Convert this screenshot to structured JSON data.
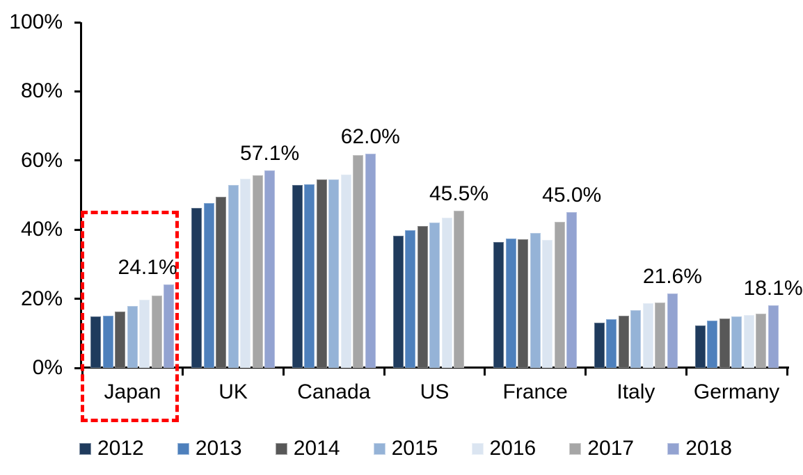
{
  "chart_data": {
    "type": "bar",
    "title": "",
    "categories": [
      "Japan",
      "UK",
      "Canada",
      "US",
      "France",
      "Italy",
      "Germany"
    ],
    "series": [
      {
        "name": "2012",
        "color": "#1F3B5D",
        "values": [
          14.8,
          46.3,
          52.9,
          38.2,
          36.4,
          13.1,
          12.3
        ]
      },
      {
        "name": "2013",
        "color": "#4E80BC",
        "values": [
          15.0,
          47.6,
          53.2,
          39.9,
          37.4,
          14.1,
          13.7
        ]
      },
      {
        "name": "2014",
        "color": "#585858",
        "values": [
          16.4,
          49.6,
          54.6,
          41.0,
          37.3,
          15.1,
          14.3
        ]
      },
      {
        "name": "2015",
        "color": "#95B3D7",
        "values": [
          18.0,
          53.0,
          54.5,
          42.0,
          39.0,
          16.7,
          14.8
        ]
      },
      {
        "name": "2016",
        "color": "#DBE5F1",
        "values": [
          19.8,
          54.7,
          56.0,
          43.4,
          37.1,
          18.8,
          15.3
        ]
      },
      {
        "name": "2017",
        "color": "#A6A6A6",
        "values": [
          20.9,
          55.7,
          61.5,
          45.5,
          42.2,
          19.0,
          15.8
        ]
      },
      {
        "name": "2018",
        "color": "#93A3D1",
        "values": [
          24.1,
          57.1,
          62.0,
          null,
          45.0,
          21.6,
          18.1
        ]
      }
    ],
    "data_labels": [
      "24.1%",
      "57.1%",
      "62.0%",
      "45.5%",
      "45.0%",
      "21.6%",
      "18.1%"
    ],
    "y_axis": {
      "min": 0,
      "max": 100,
      "step": 20,
      "tick_labels": [
        "0%",
        "20%",
        "40%",
        "60%",
        "80%",
        "100%"
      ]
    },
    "grid": false,
    "legend_position": "bottom",
    "legend_entries": [
      "2012",
      "2013",
      "2014",
      "2015",
      "2016",
      "2017",
      "2018"
    ],
    "highlight": {
      "category": "Japan",
      "shape": "dashed-rectangle",
      "color": "#FF0000"
    },
    "colors": {
      "axis": "#000000",
      "background": "#FFFFFF",
      "text": "#000000"
    }
  }
}
